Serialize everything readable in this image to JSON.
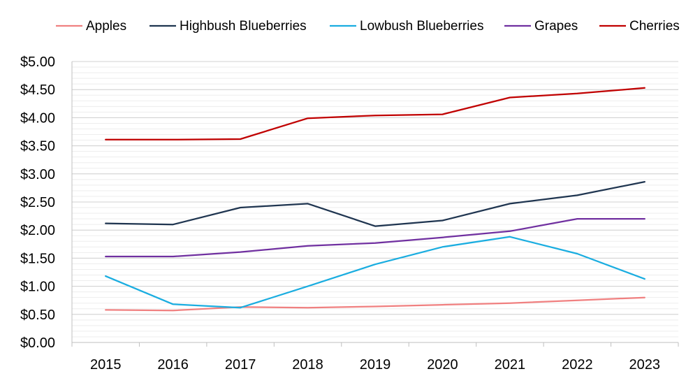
{
  "chart_data": {
    "type": "line",
    "categories": [
      "2015",
      "2016",
      "2017",
      "2018",
      "2019",
      "2020",
      "2021",
      "2022",
      "2023"
    ],
    "series": [
      {
        "name": "Apples",
        "color": "#F08080",
        "values": [
          0.58,
          0.57,
          0.63,
          0.62,
          0.64,
          0.67,
          0.7,
          0.75,
          0.8
        ]
      },
      {
        "name": "Highbush Blueberries",
        "color": "#1F3550",
        "values": [
          2.12,
          2.1,
          2.4,
          2.47,
          2.07,
          2.17,
          2.47,
          2.62,
          2.86
        ]
      },
      {
        "name": "Lowbush Blueberries",
        "color": "#1AADE0",
        "values": [
          1.18,
          0.68,
          0.62,
          1.0,
          1.39,
          1.7,
          1.88,
          1.58,
          1.13
        ]
      },
      {
        "name": "Grapes",
        "color": "#7030A0",
        "values": [
          1.53,
          1.53,
          1.61,
          1.72,
          1.77,
          1.87,
          1.98,
          2.2,
          2.2
        ]
      },
      {
        "name": "Cherries",
        "color": "#C00000",
        "values": [
          3.61,
          3.61,
          3.62,
          3.99,
          4.04,
          4.06,
          4.36,
          4.43,
          4.53
        ]
      }
    ],
    "y_ticks": [
      "$0.00",
      "$0.50",
      "$1.00",
      "$1.50",
      "$2.00",
      "$2.50",
      "$3.00",
      "$3.50",
      "$4.00",
      "$4.50",
      "$5.00"
    ],
    "ylim": [
      0,
      5
    ],
    "y_major_step": 0.5,
    "y_minor_step": 0.1,
    "grid": true,
    "legend_position": "top"
  }
}
